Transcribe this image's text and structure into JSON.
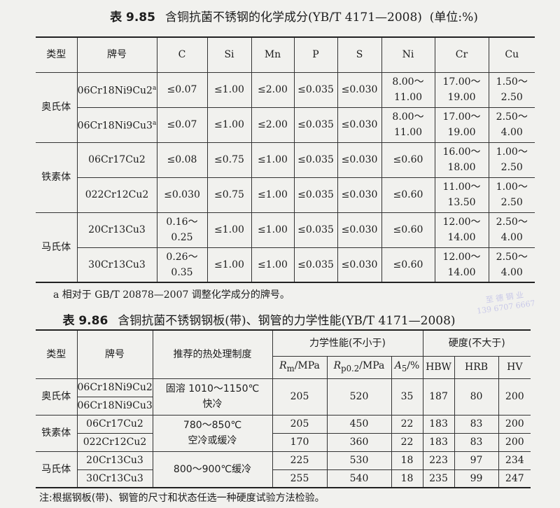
{
  "table1": {
    "number": "表 9.85",
    "title": "含铜抗菌不锈钢的化学成分(YB/T 4171—2008)",
    "unit": "(单位:%)",
    "headers": [
      "类型",
      "牌号",
      "C",
      "Si",
      "Mn",
      "P",
      "S",
      "Ni",
      "Cr",
      "Cu"
    ],
    "groups": [
      {
        "type": "奥氏体",
        "rows": [
          {
            "grade": "06Cr18Ni9Cu2",
            "mark": "a",
            "C": "≤0.07",
            "Si": "≤1.00",
            "Mn": "≤2.00",
            "P": "≤0.035",
            "S": "≤0.030",
            "Ni": [
              "8.00～",
              "11.00"
            ],
            "Cr": [
              "17.00～",
              "19.00"
            ],
            "Cu": [
              "1.50～",
              "2.50"
            ]
          },
          {
            "grade": "06Cr18Ni9Cu3",
            "mark": "a",
            "C": "≤0.07",
            "Si": "≤1.00",
            "Mn": "≤2.00",
            "P": "≤0.035",
            "S": "≤0.030",
            "Ni": [
              "8.00～",
              "11.00"
            ],
            "Cr": [
              "17.00～",
              "19.00"
            ],
            "Cu": [
              "2.50～",
              "4.00"
            ]
          }
        ]
      },
      {
        "type": "铁素体",
        "rows": [
          {
            "grade": "06Cr17Cu2",
            "mark": "",
            "C": "≤0.08",
            "Si": "≤0.75",
            "Mn": "≤1.00",
            "P": "≤0.035",
            "S": "≤0.030",
            "Ni": [
              "≤0.60",
              ""
            ],
            "Cr": [
              "16.00～",
              "18.00"
            ],
            "Cu": [
              "1.00～",
              "2.50"
            ]
          },
          {
            "grade": "022Cr12Cu2",
            "mark": "",
            "C": "≤0.030",
            "Si": "≤0.75",
            "Mn": "≤1.00",
            "P": "≤0.035",
            "S": "≤0.030",
            "Ni": [
              "≤0.60",
              ""
            ],
            "Cr": [
              "11.00～",
              "13.50"
            ],
            "Cu": [
              "1.00～",
              "2.50"
            ]
          }
        ]
      },
      {
        "type": "马氏体",
        "rows": [
          {
            "grade": "20Cr13Cu3",
            "mark": "",
            "C": "0.16～ 0.25",
            "Si": "≤1.00",
            "Mn": "≤1.00",
            "P": "≤0.035",
            "S": "≤0.030",
            "Ni": [
              "≤0.60",
              ""
            ],
            "Cr": [
              "12.00～",
              "14.00"
            ],
            "Cu": [
              "2.50～",
              "4.00"
            ]
          },
          {
            "grade": "30Cr13Cu3",
            "mark": "",
            "C": "0.26～ 0.35",
            "Si": "≤1.00",
            "Mn": "≤1.00",
            "P": "≤0.035",
            "S": "≤0.030",
            "Ni": [
              "≤0.60",
              ""
            ],
            "Cr": [
              "12.00～",
              "14.00"
            ],
            "Cu": [
              "2.50～",
              "4.00"
            ]
          }
        ]
      }
    ],
    "footnote": "a 相对于 GB/T 20878—2007 调整化学成分的牌号。"
  },
  "table2": {
    "number": "表 9.86",
    "title": "含铜抗菌不锈钢钢板(带)、钢管的力学性能(YB/T 4171—2008)",
    "headers": {
      "type": "类型",
      "grade": "牌号",
      "heat": "推荐的热处理制度",
      "mech": "力学性能(不小于)",
      "hard": "硬度(不大于)",
      "rm": "R",
      "rm_sub": "m",
      "rm_unit": "/MPa",
      "rp": "R",
      "rp_sub": "p0.2",
      "rp_unit": "/MPa",
      "a": "A",
      "a_sub": "5",
      "a_unit": "/%",
      "hbw": "HBW",
      "hrb": "HRB",
      "hv": "HV"
    },
    "groups": [
      {
        "type": "奥氏体",
        "heat": [
          "固溶 1010～1150℃",
          "快冷"
        ],
        "grades": [
          "06Cr18Ni9Cu2",
          "06Cr18Ni9Cu3"
        ],
        "rows": [
          [
            "205",
            "520",
            "35",
            "187",
            "80",
            "200"
          ]
        ]
      },
      {
        "type": "铁素体",
        "heat": [
          "780～850℃",
          "空冷或缓冷"
        ],
        "grades": [
          "06Cr17Cu2",
          "022Cr12Cu2"
        ],
        "rows": [
          [
            "205",
            "450",
            "22",
            "183",
            "83",
            "200"
          ],
          [
            "170",
            "360",
            "22",
            "183",
            "83",
            "200"
          ]
        ]
      },
      {
        "type": "马氏体",
        "heat": [
          "800～900℃缓冷",
          ""
        ],
        "grades": [
          "20Cr13Cu3",
          "30Cr13Cu3"
        ],
        "rows": [
          [
            "225",
            "530",
            "18",
            "223",
            "97",
            "234"
          ],
          [
            "255",
            "540",
            "18",
            "235",
            "99",
            "247"
          ]
        ]
      }
    ],
    "note": "注:根据钢板(带)、钢管的尺寸和状态任选一种硬度试验方法检验。"
  },
  "watermark": [
    "至 德 钢 业",
    "139 6707 6667"
  ]
}
